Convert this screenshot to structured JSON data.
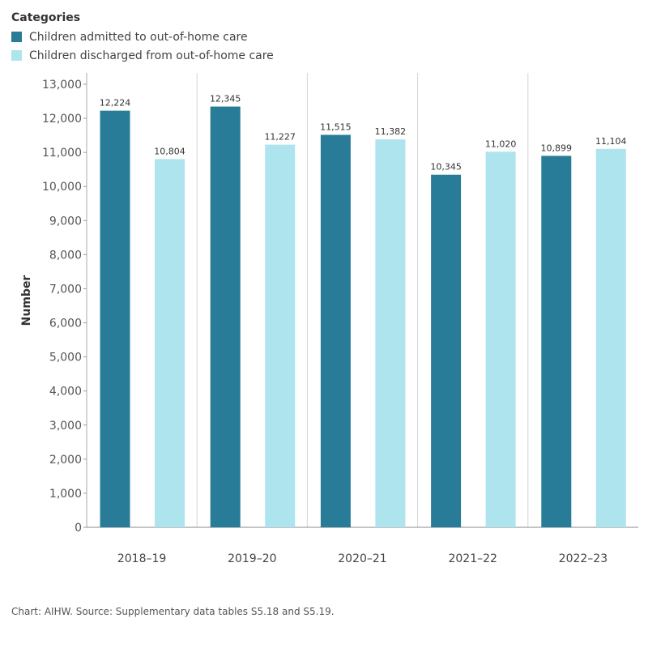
{
  "legend": {
    "title": "Categories",
    "items": [
      {
        "label": "Children admitted to out-of-home care",
        "color": "#287c97"
      },
      {
        "label": "Children discharged from out-of-home care",
        "color": "#ade4ee"
      }
    ]
  },
  "chart_data": {
    "type": "bar",
    "title": "",
    "xlabel": "",
    "ylabel": "Number",
    "ylim": [
      0,
      13000
    ],
    "yticks": [
      0,
      1000,
      2000,
      3000,
      4000,
      5000,
      6000,
      7000,
      8000,
      9000,
      10000,
      11000,
      12000,
      13000
    ],
    "categories": [
      "2018–19",
      "2019–20",
      "2020–21",
      "2021–22",
      "2022–23"
    ],
    "series": [
      {
        "name": "Children admitted to out-of-home care",
        "color": "#287c97",
        "values": [
          12224,
          12345,
          11515,
          10345,
          10899
        ]
      },
      {
        "name": "Children discharged from out-of-home care",
        "color": "#ade4ee",
        "values": [
          10804,
          11227,
          11382,
          11020,
          11104
        ]
      }
    ],
    "legend_position": "top-left"
  },
  "source": "Chart: AIHW. Source: Supplementary data tables S5.18 and S5.19."
}
